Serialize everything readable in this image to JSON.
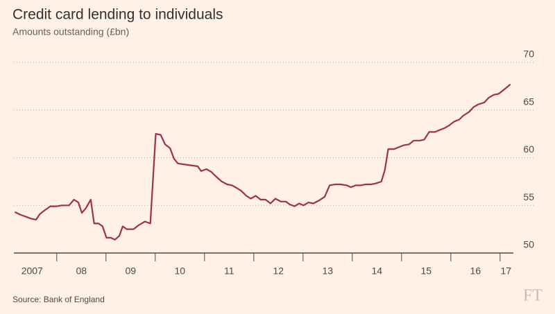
{
  "chart_data": {
    "type": "line",
    "title": "Credit card lending to individuals",
    "subtitle": "Amounts outstanding (£bn)",
    "source": "Source: Bank of England",
    "logo": "FT",
    "x": [
      2007.15,
      2007.27,
      2007.38,
      2007.48,
      2007.58,
      2007.66,
      2007.76,
      2007.87,
      2008.0,
      2008.11,
      2008.25,
      2008.35,
      2008.44,
      2008.51,
      2008.59,
      2008.69,
      2008.76,
      2008.85,
      2008.93,
      2009.01,
      2009.1,
      2009.18,
      2009.27,
      2009.34,
      2009.42,
      2009.56,
      2009.66,
      2009.79,
      2009.9,
      2010.01,
      2010.11,
      2010.2,
      2010.3,
      2010.38,
      2010.46,
      2010.58,
      2010.72,
      2010.86,
      2010.93,
      2011.04,
      2011.14,
      2011.24,
      2011.35,
      2011.46,
      2011.56,
      2011.66,
      2011.75,
      2011.85,
      2011.94,
      2012.04,
      2012.14,
      2012.24,
      2012.34,
      2012.44,
      2012.55,
      2012.65,
      2012.73,
      2012.83,
      2012.92,
      2013.01,
      2013.11,
      2013.21,
      2013.32,
      2013.44,
      2013.54,
      2013.65,
      2013.76,
      2013.89,
      2013.97,
      2014.07,
      2014.17,
      2014.27,
      2014.38,
      2014.48,
      2014.59,
      2014.66,
      2014.73,
      2014.85,
      2014.94,
      2015.04,
      2015.15,
      2015.25,
      2015.37,
      2015.46,
      2015.56,
      2015.68,
      2015.77,
      2015.87,
      2015.97,
      2016.07,
      2016.17,
      2016.25,
      2016.37,
      2016.46,
      2016.56,
      2016.68,
      2016.77,
      2016.87,
      2016.97,
      2017.07,
      2017.21
    ],
    "series": [
      {
        "name": "Credit card lending",
        "color": "#9e2f50",
        "values": [
          54.3,
          54.0,
          53.8,
          53.6,
          53.5,
          54.1,
          54.5,
          54.9,
          54.9,
          55.0,
          55.0,
          55.6,
          55.3,
          54.2,
          54.7,
          55.6,
          53.1,
          53.1,
          52.8,
          51.6,
          51.6,
          51.4,
          51.8,
          52.8,
          52.5,
          52.5,
          52.9,
          53.3,
          53.1,
          62.5,
          62.4,
          61.4,
          61.0,
          59.9,
          59.4,
          59.3,
          59.2,
          59.1,
          58.6,
          58.8,
          58.5,
          58.0,
          57.5,
          57.2,
          57.1,
          56.8,
          56.5,
          56.0,
          55.7,
          56.0,
          55.6,
          55.6,
          55.2,
          55.7,
          55.4,
          55.4,
          55.1,
          54.9,
          55.2,
          55.0,
          55.3,
          55.2,
          55.5,
          55.9,
          57.1,
          57.2,
          57.2,
          57.1,
          56.9,
          57.1,
          57.1,
          57.2,
          57.2,
          57.3,
          57.5,
          58.7,
          60.9,
          60.9,
          61.1,
          61.3,
          61.4,
          61.8,
          61.8,
          61.9,
          62.7,
          62.7,
          62.9,
          63.1,
          63.4,
          63.8,
          64.0,
          64.4,
          64.8,
          65.3,
          65.6,
          65.8,
          66.3,
          66.6,
          66.7,
          67.1,
          67.7
        ]
      }
    ],
    "xlim": [
      2007.13,
      2017.27
    ],
    "xticks": [
      2008,
      2009,
      2010,
      2011,
      2012,
      2013,
      2014,
      2015,
      2016,
      2017
    ],
    "xticklabels": [
      {
        "value": 2007.5,
        "label": "2007"
      },
      {
        "value": 2008.5,
        "label": "08"
      },
      {
        "value": 2009.5,
        "label": "09"
      },
      {
        "value": 2010.5,
        "label": "10"
      },
      {
        "value": 2011.5,
        "label": "11"
      },
      {
        "value": 2012.5,
        "label": "12"
      },
      {
        "value": 2013.5,
        "label": "13"
      },
      {
        "value": 2014.5,
        "label": "14"
      },
      {
        "value": 2015.5,
        "label": "15"
      },
      {
        "value": 2016.5,
        "label": "16"
      },
      {
        "value": 2017.12,
        "label": "17"
      }
    ],
    "ylim": [
      50,
      70
    ],
    "yticks": [
      50,
      55,
      60,
      65,
      70
    ],
    "grid": true
  }
}
